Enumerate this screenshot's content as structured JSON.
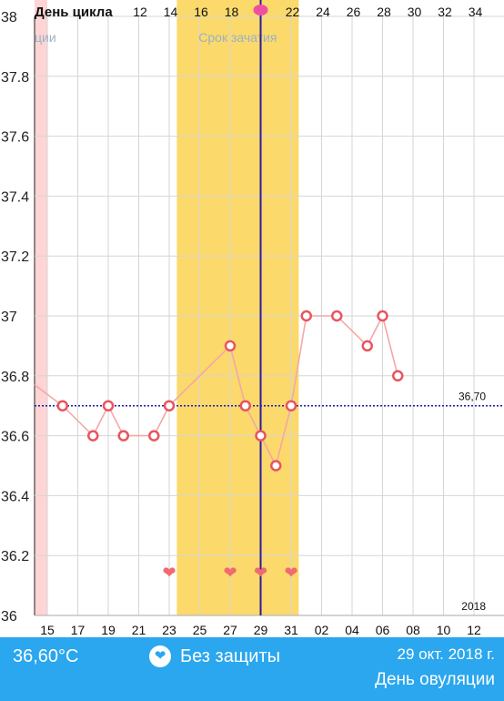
{
  "chart_data": {
    "type": "line",
    "title": "",
    "xlabel": "",
    "ylabel": "",
    "ylim": [
      36,
      38
    ],
    "y_ticks": [
      "36",
      "36.2",
      "36.4",
      "36.6",
      "36.8",
      "37",
      "37.2",
      "37.4",
      "37.6",
      "37.8",
      "38"
    ],
    "cycle_header_label": "День цикла",
    "cycle_day_ticks": [
      "12",
      "14",
      "16",
      "18",
      "20",
      "22",
      "24",
      "26",
      "28",
      "30",
      "32",
      "34"
    ],
    "date_ticks": [
      "15",
      "17",
      "19",
      "21",
      "23",
      "25",
      "27",
      "29",
      "31",
      "02",
      "04",
      "06",
      "08",
      "10",
      "12"
    ],
    "year_label": "2018",
    "series": [
      {
        "values": [
          {
            "date": "14 окт.",
            "t": 36.77
          },
          {
            "date": "16 окт.",
            "t": 36.7
          },
          {
            "date": "18 окт.",
            "t": 36.6
          },
          {
            "date": "19 окт.",
            "t": 36.7
          },
          {
            "date": "20 окт.",
            "t": 36.6
          },
          {
            "date": "22 окт.",
            "t": 36.6
          },
          {
            "date": "23 окт.",
            "t": 36.7
          },
          {
            "date": "27 окт.",
            "t": 36.9
          },
          {
            "date": "28 окт.",
            "t": 36.7
          },
          {
            "date": "29 окт.",
            "t": 36.6
          },
          {
            "date": "30 окт.",
            "t": 36.5
          },
          {
            "date": "31 окт.",
            "t": 36.7
          },
          {
            "date": "01 нояб.",
            "t": 37.0
          },
          {
            "date": "03 нояб.",
            "t": 37.0
          },
          {
            "date": "05 нояб.",
            "t": 36.9
          },
          {
            "date": "06 нояб.",
            "t": 37.0
          },
          {
            "date": "07 нояб.",
            "t": 36.8
          }
        ]
      }
    ],
    "baseline": {
      "value": 36.7,
      "label": "36,70"
    },
    "period_band": {
      "label": "ции",
      "end_date": "14 окт."
    },
    "fertile_window": {
      "label": "Срок зачатия",
      "start_date": "24 окт.",
      "end_date": "31 окт."
    },
    "ovulation_date": "29 окт.",
    "heart_marks": [
      "23 окт.",
      "27 окт.",
      "29 окт.",
      "31 окт."
    ],
    "colors": {
      "line": "#f4a7a7",
      "marker": "#e8555e",
      "fertile": "#fbd96b",
      "period": "#ffd4d4",
      "baseline": "#1a1ab0",
      "ovulation": "#2a1aa0",
      "heart": "#f06a6f",
      "footer": "#2aa7ee",
      "ovulation_drop": "#ef4fa0"
    },
    "grid": true
  },
  "footer": {
    "temperature": "36,60°C",
    "protection_icon": "heart-icon",
    "protection": "Без защиты",
    "date": "29 окт. 2018 г.",
    "day_type": "День овуляции"
  }
}
